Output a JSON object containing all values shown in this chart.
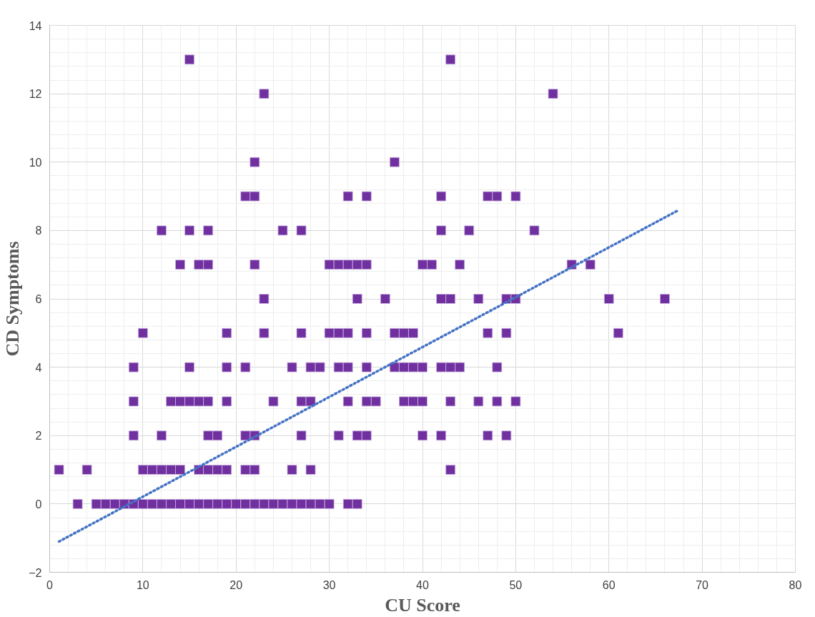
{
  "chart_data": {
    "type": "scatter",
    "xlabel": "CU Score",
    "ylabel": "CD Symptoms",
    "xlim": [
      0,
      80
    ],
    "ylim": [
      -2,
      14
    ],
    "xticks": [
      0,
      10,
      20,
      30,
      40,
      50,
      60,
      70,
      80
    ],
    "yticks": [
      -2,
      0,
      2,
      4,
      6,
      8,
      10,
      12,
      14
    ],
    "grid": true,
    "series": [
      {
        "color": "#7030a0",
        "marker": "square",
        "x": [
          15,
          43,
          23,
          54,
          22,
          37,
          21,
          22,
          32,
          34,
          42,
          47,
          48,
          50,
          12,
          15,
          17,
          25,
          27,
          42,
          45,
          52,
          14,
          16,
          17,
          22,
          30,
          31,
          32,
          33,
          34,
          40,
          41,
          44,
          56,
          58,
          23,
          33,
          36,
          42,
          43,
          46,
          49,
          50,
          60,
          66,
          10,
          19,
          23,
          27,
          30,
          31,
          32,
          34,
          37,
          38,
          39,
          47,
          49,
          61,
          9,
          15,
          19,
          21,
          26,
          28,
          29,
          31,
          32,
          34,
          37,
          38,
          39,
          40,
          42,
          43,
          44,
          48,
          9,
          13,
          14,
          15,
          16,
          17,
          19,
          24,
          27,
          28,
          32,
          34,
          35,
          38,
          39,
          40,
          43,
          46,
          48,
          50,
          9,
          12,
          17,
          18,
          21,
          22,
          27,
          31,
          33,
          34,
          40,
          42,
          47,
          49,
          1,
          4,
          10,
          11,
          12,
          13,
          14,
          16,
          17,
          18,
          19,
          21,
          22,
          26,
          28,
          43,
          3,
          5,
          6,
          7,
          8,
          9,
          10,
          11,
          12,
          13,
          14,
          15,
          16,
          17,
          18,
          19,
          20,
          21,
          22,
          23,
          24,
          25,
          26,
          27,
          28,
          29,
          30,
          32,
          33
        ],
        "values": [
          13,
          13,
          12,
          12,
          10,
          10,
          9,
          9,
          9,
          9,
          9,
          9,
          9,
          9,
          8,
          8,
          8,
          8,
          8,
          8,
          8,
          8,
          7,
          7,
          7,
          7,
          7,
          7,
          7,
          7,
          7,
          7,
          7,
          7,
          7,
          7,
          6,
          6,
          6,
          6,
          6,
          6,
          6,
          6,
          6,
          6,
          5,
          5,
          5,
          5,
          5,
          5,
          5,
          5,
          5,
          5,
          5,
          5,
          5,
          5,
          4,
          4,
          4,
          4,
          4,
          4,
          4,
          4,
          4,
          4,
          4,
          4,
          4,
          4,
          4,
          4,
          4,
          4,
          3,
          3,
          3,
          3,
          3,
          3,
          3,
          3,
          3,
          3,
          3,
          3,
          3,
          3,
          3,
          3,
          3,
          3,
          3,
          3,
          2,
          2,
          2,
          2,
          2,
          2,
          2,
          2,
          2,
          2,
          2,
          2,
          2,
          2,
          1,
          1,
          1,
          1,
          1,
          1,
          1,
          1,
          1,
          1,
          1,
          1,
          1,
          1,
          1,
          1,
          0,
          0,
          0,
          0,
          0,
          0,
          0,
          0,
          0,
          0,
          0,
          0,
          0,
          0,
          0,
          0,
          0,
          0,
          0,
          0,
          0,
          0,
          0,
          0,
          0,
          0,
          0,
          0,
          0
        ]
      },
      {
        "type": "line",
        "color": "#4472c4",
        "line_style": "dotted",
        "x": [
          1,
          67.5
        ],
        "values": [
          -1.1,
          8.6
        ]
      }
    ]
  }
}
